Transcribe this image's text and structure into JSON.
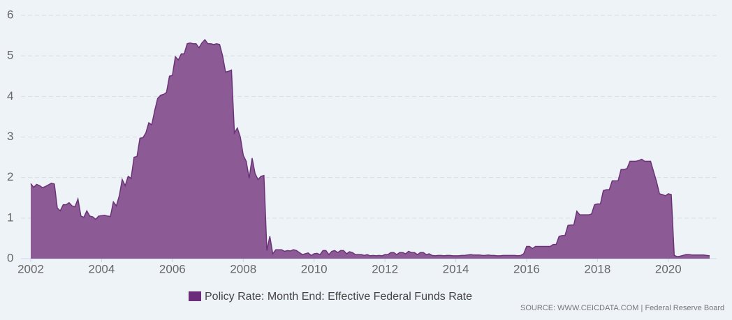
{
  "chart_data": {
    "type": "area",
    "series": [
      {
        "name": "Policy Rate: Month End: Effective Federal Funds Rate",
        "color": "#8c5b96",
        "line_color": "#6b3377",
        "legend_color": "#6b2c7b",
        "values": [
          1.85,
          1.76,
          1.83,
          1.8,
          1.75,
          1.78,
          1.82,
          1.86,
          1.84,
          1.25,
          1.18,
          1.33,
          1.33,
          1.38,
          1.3,
          1.28,
          1.47,
          1.05,
          1.02,
          1.18,
          1.05,
          1.03,
          0.97,
          1.05,
          1.06,
          1.07,
          1.05,
          1.04,
          1.4,
          1.3,
          1.55,
          1.95,
          1.8,
          2.03,
          1.98,
          2.5,
          2.52,
          2.97,
          2.98,
          3.1,
          3.35,
          3.3,
          3.65,
          3.95,
          4.03,
          4.05,
          4.1,
          4.5,
          4.52,
          4.98,
          4.9,
          5.05,
          5.05,
          5.3,
          5.32,
          5.3,
          5.3,
          5.2,
          5.32,
          5.4,
          5.3,
          5.3,
          5.28,
          5.3,
          5.28,
          5.0,
          4.6,
          4.62,
          4.65,
          3.1,
          3.22,
          3.0,
          2.55,
          2.4,
          1.98,
          2.48,
          2.1,
          1.95,
          2.03,
          2.05,
          0.2,
          0.55,
          0.12,
          0.22,
          0.22,
          0.22,
          0.18,
          0.2,
          0.19,
          0.22,
          0.2,
          0.15,
          0.1,
          0.12,
          0.14,
          0.08,
          0.12,
          0.13,
          0.1,
          0.2,
          0.2,
          0.1,
          0.18,
          0.2,
          0.15,
          0.2,
          0.2,
          0.12,
          0.17,
          0.15,
          0.1,
          0.1,
          0.1,
          0.08,
          0.1,
          0.07,
          0.08,
          0.07,
          0.08,
          0.07,
          0.1,
          0.1,
          0.15,
          0.15,
          0.1,
          0.15,
          0.15,
          0.12,
          0.18,
          0.15,
          0.15,
          0.1,
          0.15,
          0.15,
          0.1,
          0.12,
          0.08,
          0.07,
          0.08,
          0.08,
          0.07,
          0.08,
          0.08,
          0.07,
          0.07,
          0.07,
          0.08,
          0.08,
          0.09,
          0.1,
          0.09,
          0.09,
          0.09,
          0.08,
          0.08,
          0.09,
          0.08,
          0.08,
          0.07,
          0.07,
          0.08,
          0.08,
          0.08,
          0.08,
          0.08,
          0.07,
          0.08,
          0.12,
          0.3,
          0.3,
          0.25,
          0.3,
          0.3,
          0.3,
          0.3,
          0.3,
          0.3,
          0.35,
          0.35,
          0.55,
          0.57,
          0.57,
          0.82,
          0.83,
          0.83,
          1.17,
          1.08,
          1.08,
          1.08,
          1.08,
          1.1,
          1.33,
          1.35,
          1.35,
          1.68,
          1.7,
          1.7,
          1.92,
          1.92,
          1.92,
          2.2,
          2.2,
          2.22,
          2.4,
          2.4,
          2.4,
          2.42,
          2.45,
          2.4,
          2.4,
          2.4,
          2.15,
          1.9,
          1.6,
          1.58,
          1.55,
          1.6,
          1.58,
          0.08,
          0.05,
          0.06,
          0.08,
          0.1,
          0.1,
          0.09,
          0.09,
          0.09,
          0.09,
          0.09,
          0.08,
          0.07
        ]
      }
    ],
    "x": [
      2002,
      2002.083,
      2002.167,
      2002.25,
      2002.333,
      2002.417,
      2002.5,
      2002.583,
      2002.667,
      2002.75,
      2002.833,
      2002.917,
      2003,
      2003.083,
      2003.167,
      2003.25,
      2003.333,
      2003.417,
      2003.5,
      2003.583,
      2003.667,
      2003.75,
      2003.833,
      2003.917,
      2004,
      2004.083,
      2004.167,
      2004.25,
      2004.333,
      2004.417,
      2004.5,
      2004.583,
      2004.667,
      2004.75,
      2004.833,
      2004.917,
      2005,
      2005.083,
      2005.167,
      2005.25,
      2005.333,
      2005.417,
      2005.5,
      2005.583,
      2005.667,
      2005.75,
      2005.833,
      2005.917,
      2006,
      2006.083,
      2006.167,
      2006.25,
      2006.333,
      2006.417,
      2006.5,
      2006.583,
      2006.667,
      2006.75,
      2006.833,
      2006.917,
      2007,
      2007.083,
      2007.167,
      2007.25,
      2007.333,
      2007.417,
      2007.5,
      2007.583,
      2007.667,
      2007.75,
      2007.833,
      2007.917,
      2008,
      2008.083,
      2008.167,
      2008.25,
      2008.333,
      2008.417,
      2008.5,
      2008.583,
      2008.667,
      2008.75,
      2008.833,
      2008.917,
      2009,
      2009.083,
      2009.167,
      2009.25,
      2009.333,
      2009.417,
      2009.5,
      2009.583,
      2009.667,
      2009.75,
      2009.833,
      2009.917,
      2010,
      2010.083,
      2010.167,
      2010.25,
      2010.333,
      2010.417,
      2010.5,
      2010.583,
      2010.667,
      2010.75,
      2010.833,
      2010.917,
      2011,
      2011.083,
      2011.167,
      2011.25,
      2011.333,
      2011.417,
      2011.5,
      2011.583,
      2011.667,
      2011.75,
      2011.833,
      2011.917,
      2012,
      2012.083,
      2012.167,
      2012.25,
      2012.333,
      2012.417,
      2012.5,
      2012.583,
      2012.667,
      2012.75,
      2012.833,
      2012.917,
      2013,
      2013.083,
      2013.167,
      2013.25,
      2013.333,
      2013.417,
      2013.5,
      2013.583,
      2013.667,
      2013.75,
      2013.833,
      2013.917,
      2014,
      2014.083,
      2014.167,
      2014.25,
      2014.333,
      2014.417,
      2014.5,
      2014.583,
      2014.667,
      2014.75,
      2014.833,
      2014.917,
      2015,
      2015.083,
      2015.167,
      2015.25,
      2015.333,
      2015.417,
      2015.5,
      2015.583,
      2015.667,
      2015.75,
      2015.833,
      2015.917,
      2016,
      2016.083,
      2016.167,
      2016.25,
      2016.333,
      2016.417,
      2016.5,
      2016.583,
      2016.667,
      2016.75,
      2016.833,
      2016.917,
      2017,
      2017.083,
      2017.167,
      2017.25,
      2017.333,
      2017.417,
      2017.5,
      2017.583,
      2017.667,
      2017.75,
      2017.833,
      2017.917,
      2018,
      2018.083,
      2018.167,
      2018.25,
      2018.333,
      2018.417,
      2018.5,
      2018.583,
      2018.667,
      2018.75,
      2018.833,
      2018.917,
      2019,
      2019.083,
      2019.167,
      2019.25,
      2019.333,
      2019.417,
      2019.5,
      2019.583,
      2019.667,
      2019.75,
      2019.833,
      2019.917,
      2020,
      2020.083,
      2020.167,
      2020.25,
      2020.333,
      2020.417,
      2020.5,
      2020.583,
      2020.667,
      2020.75,
      2020.833,
      2020.917,
      2021,
      2021.083,
      2021.167
    ],
    "xlim": [
      2002,
      2021.167
    ],
    "xticks": [
      2002,
      2004,
      2006,
      2008,
      2010,
      2012,
      2014,
      2016,
      2018,
      2020
    ],
    "ylim": [
      0,
      6
    ],
    "yticks": [
      0,
      1,
      2,
      3,
      4,
      5,
      6
    ],
    "grid": true,
    "legend": "bottom",
    "source": "SOURCE: WWW.CEICDATA.COM | Federal Reserve Board"
  }
}
